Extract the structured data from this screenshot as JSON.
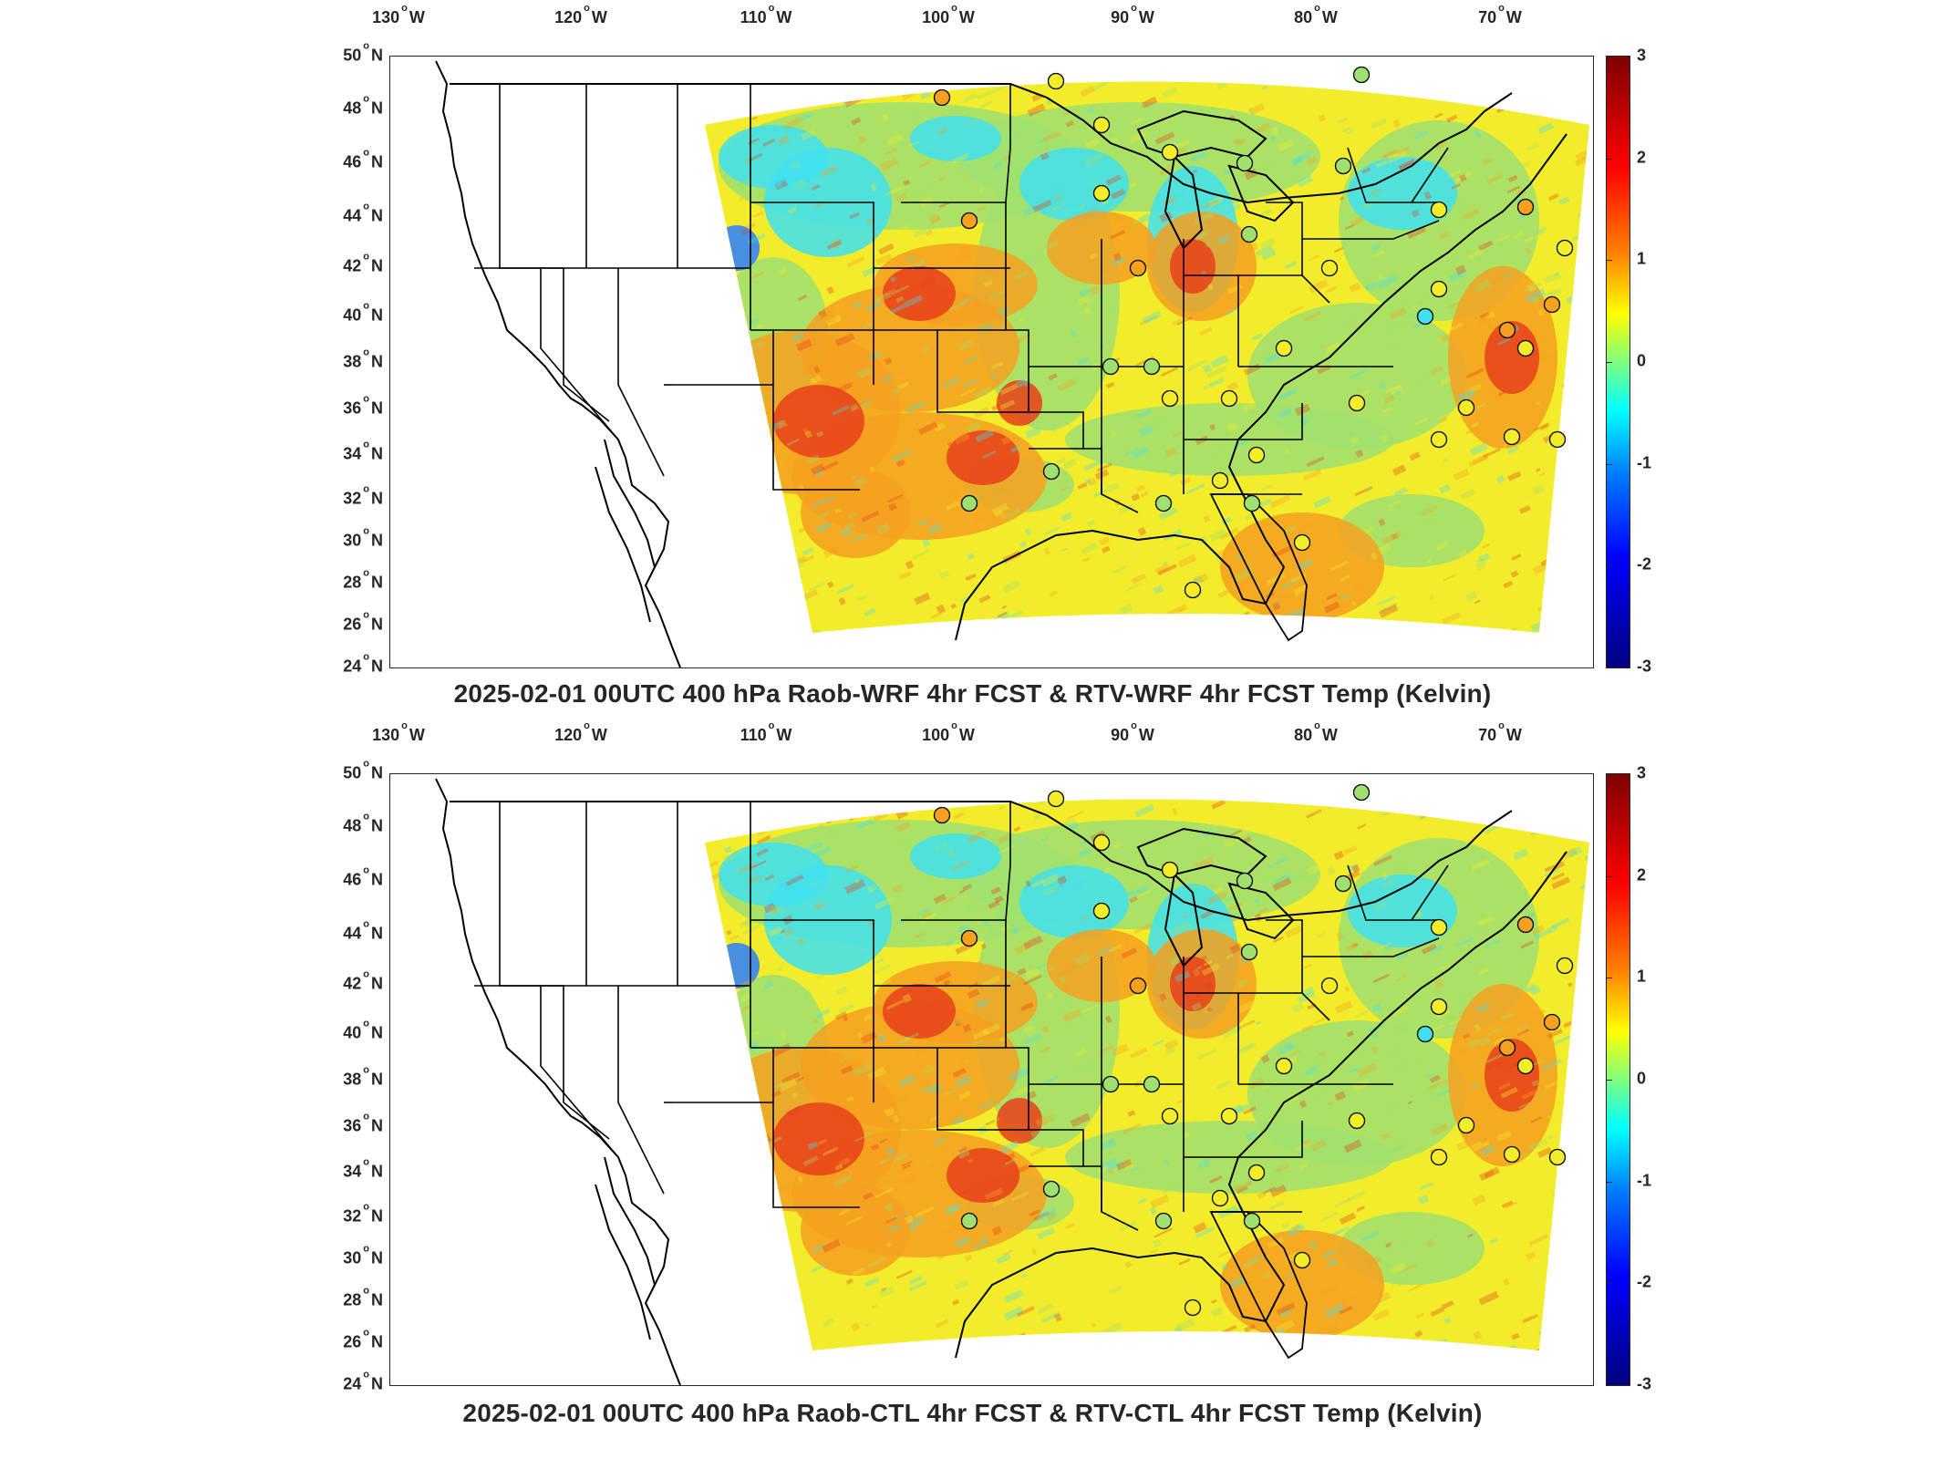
{
  "panels": [
    {
      "title": "2025-02-01 00UTC 400 hPa Raob-WRF 4hr FCST & RTV-WRF 4hr FCST Temp (Kelvin)"
    },
    {
      "title": "2025-02-01 00UTC 400 hPa Raob-CTL 4hr FCST & RTV-CTL 4hr FCST Temp (Kelvin)"
    }
  ],
  "lon_labels": [
    "130",
    "120",
    "110",
    "100",
    "90",
    "80",
    "70"
  ],
  "lon_suffix": "W",
  "lat_labels": [
    "50",
    "48",
    "46",
    "44",
    "42",
    "40",
    "38",
    "36",
    "34",
    "32",
    "30",
    "28",
    "26",
    "24"
  ],
  "lat_suffix": "N",
  "colorbar": {
    "labels": [
      "3",
      "2",
      "1",
      "0",
      "-1",
      "-2",
      "-3"
    ],
    "min": -3,
    "max": 3,
    "colormap": "jet"
  },
  "colors": {
    "red": "#e8401a",
    "orange": "#f5a020",
    "yellow": "#f2ec2a",
    "green": "#9fe070",
    "cyan": "#40e0f0",
    "blue": "#2a7fff"
  }
}
